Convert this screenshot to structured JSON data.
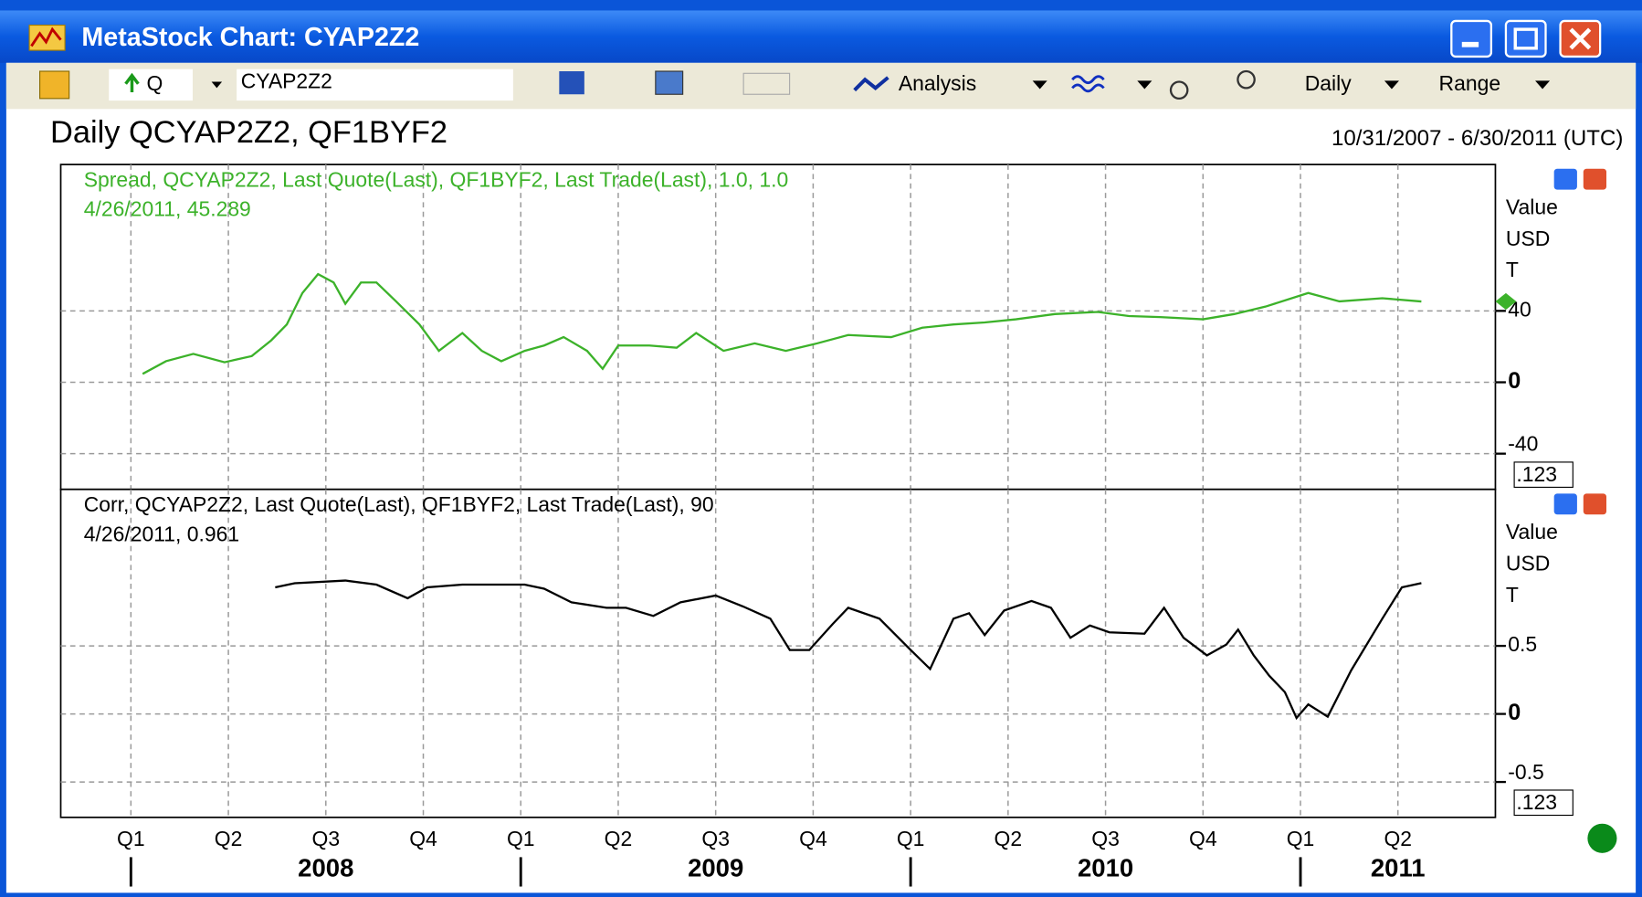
{
  "window": {
    "title": "MetaStock Chart: CYAP2Z2",
    "toolbar": {
      "symbol_prefix": "Q",
      "symbol": "CYAP2Z2",
      "analysis": "Analysis",
      "period": "Daily",
      "range": "Range"
    },
    "chart_title": "Daily QCYAP2Z2, QF1BYF2",
    "date_range": "10/31/2007 - 6/30/2011 (UTC)"
  },
  "chart_data": [
    {
      "type": "line",
      "title": "Spread, QCYAP2Z2, Last Quote(Last), QF1BYF2, Last Trade(Last),  1.0, 1.0",
      "subtitle": "4/26/2011, 45.289",
      "y_axis_labels": [
        "Value",
        "USD",
        "T"
      ],
      "scale_box": ".123",
      "xlim": [
        2007.82,
        2011.5
      ],
      "ylim": [
        -60,
        122
      ],
      "yticks": [
        -40,
        0,
        40
      ],
      "grid": true,
      "x": [
        2008.03,
        2008.09,
        2008.16,
        2008.24,
        2008.31,
        2008.36,
        2008.4,
        2008.44,
        2008.48,
        2008.52,
        2008.55,
        2008.59,
        2008.63,
        2008.68,
        2008.74,
        2008.79,
        2008.85,
        2008.9,
        2008.95,
        2009.01,
        2009.06,
        2009.11,
        2009.17,
        2009.21,
        2009.25,
        2009.33,
        2009.4,
        2009.45,
        2009.52,
        2009.6,
        2009.68,
        2009.76,
        2009.84,
        2009.95,
        2010.03,
        2010.11,
        2010.19,
        2010.27,
        2010.37,
        2010.48,
        2010.56,
        2010.64,
        2010.75,
        2010.83,
        2010.91,
        2011.02,
        2011.1,
        2011.21,
        2011.31
      ],
      "series": [
        {
          "color": "#3cb22a",
          "values": [
            4.7,
            11.8,
            15.9,
            11.2,
            14.7,
            23.5,
            32.4,
            50,
            60.6,
            55.9,
            44,
            55.9,
            55.9,
            45.3,
            32.4,
            17.6,
            27.6,
            17.6,
            11.8,
            17.6,
            20.6,
            25.3,
            17.6,
            7.6,
            20.6,
            20.6,
            19.4,
            27.6,
            17.6,
            21.8,
            17.6,
            21.8,
            26.5,
            25.3,
            30.6,
            32.4,
            33.5,
            35.3,
            38.2,
            39.4,
            37.1,
            36.5,
            35.3,
            38.2,
            42.4,
            50,
            45.3,
            47.1,
            45.289
          ]
        }
      ]
    },
    {
      "type": "line",
      "title": "Corr, QCYAP2Z2, Last Quote(Last), QF1BYF2, Last Trade(Last),  90",
      "subtitle": "4/26/2011, 0.961",
      "y_axis_labels": [
        "Value",
        "USD",
        "T"
      ],
      "scale_box": ".123",
      "xlim": [
        2007.82,
        2011.5
      ],
      "ylim": [
        -0.76,
        1.65
      ],
      "yticks": [
        -0.5,
        0,
        0.5
      ],
      "grid": true,
      "xticks": [
        {
          "value": 2008,
          "label": "Q1"
        },
        {
          "value": 2008.25,
          "label": "Q2"
        },
        {
          "value": 2008.5,
          "label": "Q3"
        },
        {
          "value": 2008.75,
          "label": "Q4"
        },
        {
          "value": 2009,
          "label": "Q1"
        },
        {
          "value": 2009.25,
          "label": "Q2"
        },
        {
          "value": 2009.5,
          "label": "Q3"
        },
        {
          "value": 2009.75,
          "label": "Q4"
        },
        {
          "value": 2010,
          "label": "Q1"
        },
        {
          "value": 2010.25,
          "label": "Q2"
        },
        {
          "value": 2010.5,
          "label": "Q3"
        },
        {
          "value": 2010.75,
          "label": "Q4"
        },
        {
          "value": 2011,
          "label": "Q1"
        },
        {
          "value": 2011.25,
          "label": "Q2"
        }
      ],
      "year_ticks": [
        {
          "value": 2008,
          "label": "2008"
        },
        {
          "value": 2009,
          "label": "2009"
        },
        {
          "value": 2010,
          "label": "2010"
        },
        {
          "value": 2011,
          "label": "2011"
        }
      ],
      "x": [
        2008.37,
        2008.42,
        2008.55,
        2008.63,
        2008.71,
        2008.76,
        2008.85,
        2009.01,
        2009.06,
        2009.13,
        2009.22,
        2009.27,
        2009.34,
        2009.41,
        2009.5,
        2009.57,
        2009.64,
        2009.69,
        2009.74,
        2009.8,
        2009.84,
        2009.92,
        2010.0,
        2010.05,
        2010.11,
        2010.15,
        2010.19,
        2010.24,
        2010.31,
        2010.36,
        2010.41,
        2010.46,
        2010.51,
        2010.6,
        2010.65,
        2010.7,
        2010.76,
        2010.81,
        2010.84,
        2010.88,
        2010.92,
        2010.96,
        2010.99,
        2011.02,
        2011.07,
        2011.13,
        2011.21,
        2011.26,
        2011.31
      ],
      "series": [
        {
          "color": "#000000",
          "values": [
            0.93,
            0.96,
            0.98,
            0.95,
            0.85,
            0.93,
            0.95,
            0.95,
            0.92,
            0.82,
            0.78,
            0.78,
            0.72,
            0.82,
            0.87,
            0.79,
            0.7,
            0.47,
            0.47,
            0.66,
            0.78,
            0.7,
            0.47,
            0.33,
            0.7,
            0.74,
            0.58,
            0.76,
            0.83,
            0.78,
            0.56,
            0.65,
            0.6,
            0.59,
            0.78,
            0.56,
            0.43,
            0.51,
            0.62,
            0.43,
            0.28,
            0.16,
            -0.03,
            0.07,
            -0.02,
            0.32,
            0.7,
            0.93,
            0.961
          ]
        }
      ]
    }
  ]
}
